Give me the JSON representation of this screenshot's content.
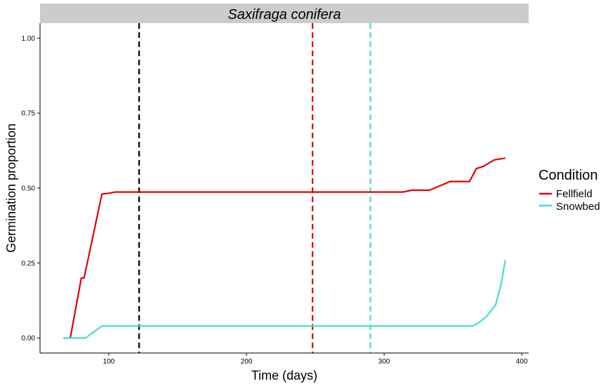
{
  "chart_data": {
    "type": "line",
    "panel_title": "Saxifraga conifera",
    "xlabel": "Time (days)",
    "ylabel": "Germination proportion",
    "xlim": [
      50,
      405
    ],
    "ylim": [
      -0.05,
      1.05
    ],
    "x_ticks": [
      100,
      200,
      300,
      400
    ],
    "y_ticks": [
      0.0,
      0.25,
      0.5,
      0.75,
      1.0
    ],
    "x_tick_labels": [
      "100",
      "200",
      "300",
      "400"
    ],
    "y_tick_labels": [
      "0.00",
      "0.25",
      "0.50",
      "0.75",
      "1.00"
    ],
    "grid": false,
    "legend": {
      "title": "Condition",
      "position": "right",
      "entries": [
        "Fellfield",
        "Snowbed"
      ]
    },
    "series": [
      {
        "name": "Fellfield",
        "color": "#e00000",
        "x": [
          67,
          72,
          80,
          82,
          95,
          100,
          105,
          150,
          200,
          250,
          300,
          314,
          320,
          333,
          348,
          362,
          367,
          372,
          380,
          388
        ],
        "y": [
          0.0,
          0.0,
          0.2,
          0.2,
          0.48,
          0.483,
          0.487,
          0.487,
          0.487,
          0.487,
          0.487,
          0.487,
          0.493,
          0.493,
          0.522,
          0.522,
          0.565,
          0.572,
          0.594,
          0.6
        ]
      },
      {
        "name": "Snowbed",
        "color": "#40e0d0",
        "x": [
          67,
          83,
          95,
          150,
          200,
          250,
          300,
          355,
          364,
          368,
          374,
          381,
          385,
          388
        ],
        "y": [
          0.0,
          0.0,
          0.04,
          0.04,
          0.04,
          0.04,
          0.04,
          0.04,
          0.04,
          0.048,
          0.07,
          0.11,
          0.18,
          0.26
        ]
      }
    ],
    "vlines": [
      {
        "x": 122,
        "color": "#000000",
        "style": "dashed"
      },
      {
        "x": 248,
        "color": "#e00000",
        "style": "dashed"
      },
      {
        "x": 290,
        "color": "#40e0d0",
        "style": "dashed"
      }
    ]
  }
}
